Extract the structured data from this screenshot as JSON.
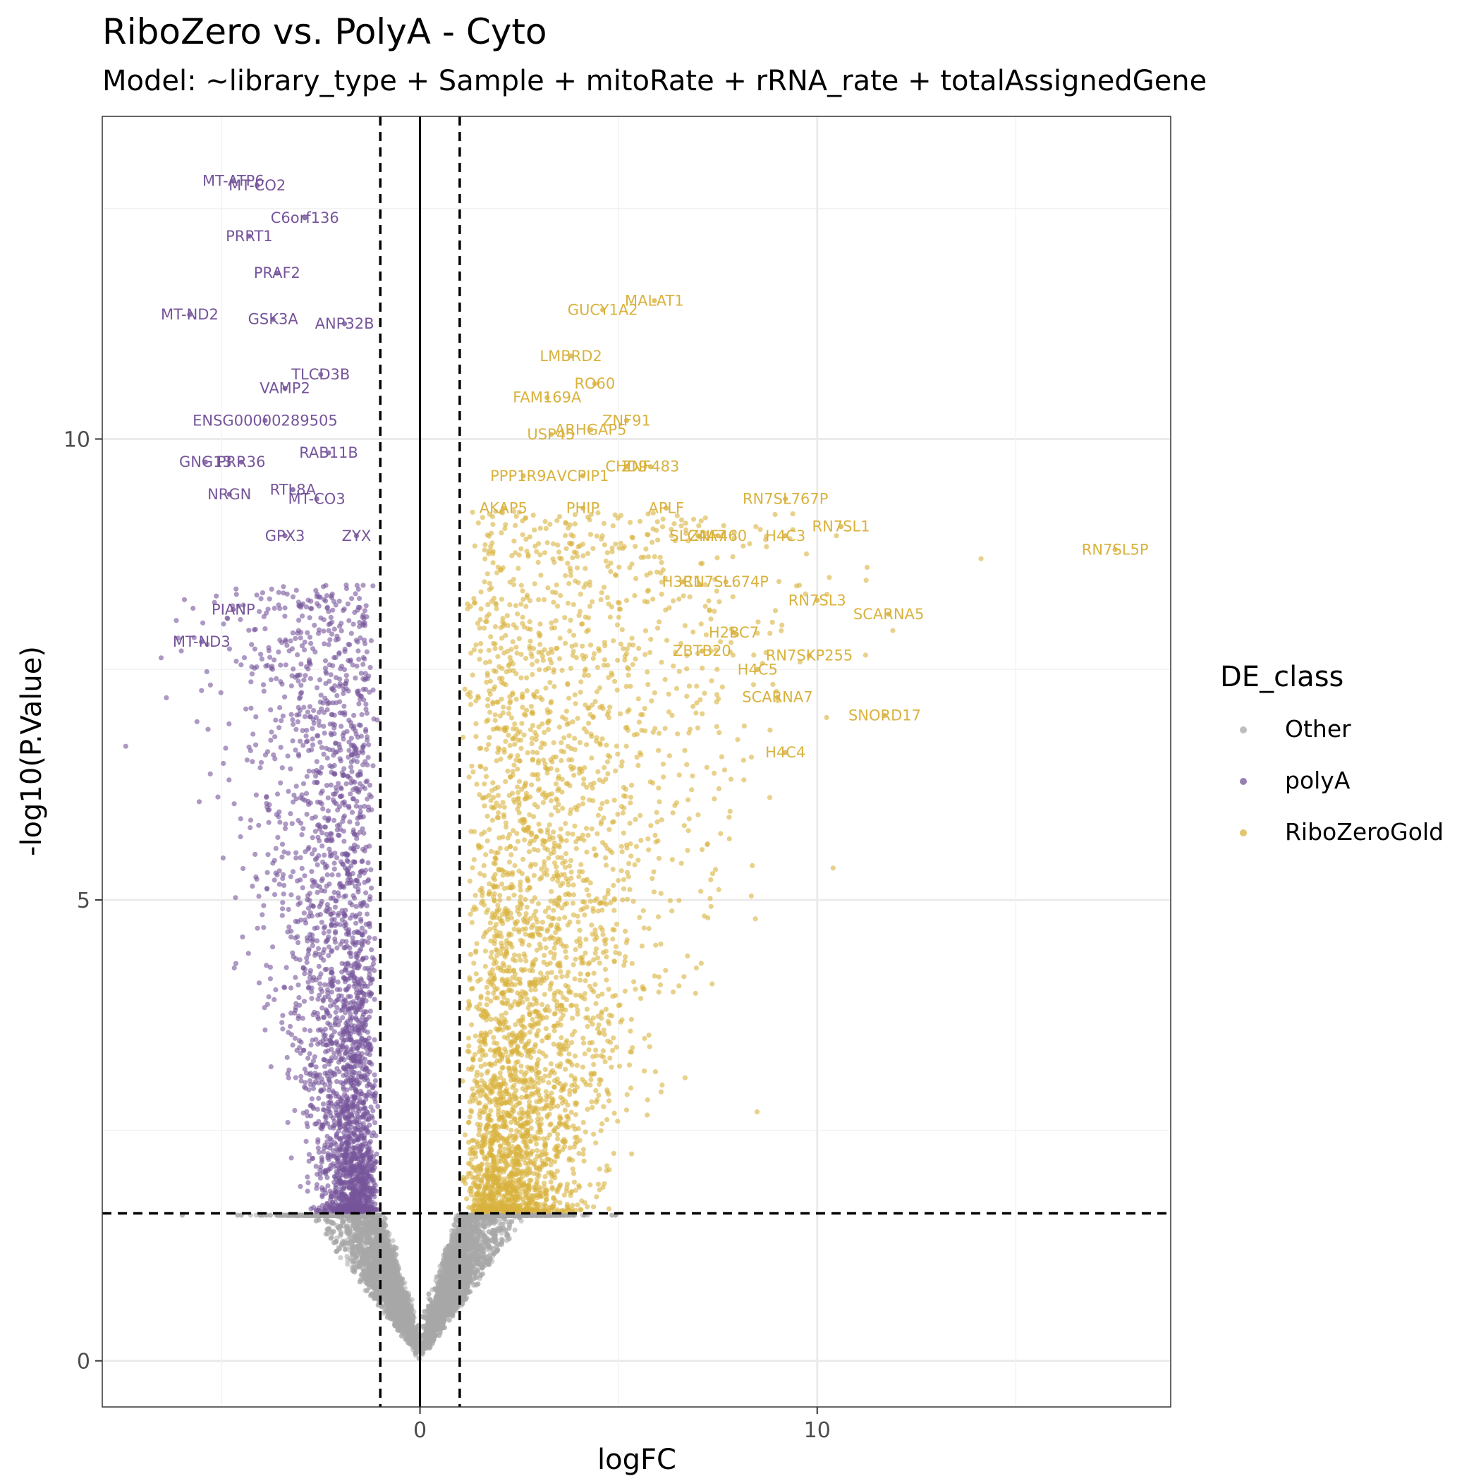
{
  "chart_data": {
    "type": "scatter",
    "title": "RiboZero vs. PolyA - Cyto",
    "subtitle": "Model: ~library_type + Sample + mitoRate + rRNA_rate + totalAssignedGene",
    "xlabel": "logFC",
    "ylabel": "-log10(P.Value)",
    "xlim": [
      -8.0,
      18.9
    ],
    "ylim": [
      -0.5,
      13.5
    ],
    "x_ticks": [
      "0",
      "10"
    ],
    "x_tick_values": [
      0,
      10
    ],
    "y_ticks": [
      "0",
      "5",
      "10"
    ],
    "y_tick_values": [
      0,
      5,
      10
    ],
    "grid": true,
    "thresholds": {
      "logFC": [
        -1,
        1
      ],
      "neg_log10_p": 1.6
    },
    "legend": {
      "title": "DE_class",
      "position": "right",
      "entries": [
        {
          "label": "Other",
          "color": "#a8a8a8"
        },
        {
          "label": "polyA",
          "color": "#76559b"
        },
        {
          "label": "RiboZeroGold",
          "color": "#d9b23e"
        }
      ]
    },
    "labeled_points": [
      {
        "label": "MT-ATP6",
        "x": -4.7,
        "y": 12.8,
        "class": "polyA"
      },
      {
        "label": "MT-CO2",
        "x": -4.1,
        "y": 12.75,
        "class": "polyA"
      },
      {
        "label": "C6orf136",
        "x": -2.9,
        "y": 12.4,
        "class": "polyA"
      },
      {
        "label": "PRRT1",
        "x": -4.3,
        "y": 12.2,
        "class": "polyA"
      },
      {
        "label": "PRAF2",
        "x": -3.6,
        "y": 11.8,
        "class": "polyA"
      },
      {
        "label": "MT-ND2",
        "x": -5.8,
        "y": 11.35,
        "class": "polyA"
      },
      {
        "label": "GSK3A",
        "x": -3.7,
        "y": 11.3,
        "class": "polyA"
      },
      {
        "label": "ANP32B",
        "x": -1.9,
        "y": 11.25,
        "class": "polyA"
      },
      {
        "label": "TLCD3B",
        "x": -2.5,
        "y": 10.7,
        "class": "polyA"
      },
      {
        "label": "VAMP2",
        "x": -3.4,
        "y": 10.55,
        "class": "polyA"
      },
      {
        "label": "ENSG00000289505",
        "x": -3.9,
        "y": 10.2,
        "class": "polyA"
      },
      {
        "label": "RAB11B",
        "x": -2.3,
        "y": 9.85,
        "class": "polyA"
      },
      {
        "label": "GNG13",
        "x": -5.4,
        "y": 9.75,
        "class": "polyA"
      },
      {
        "label": "PRR36",
        "x": -4.5,
        "y": 9.75,
        "class": "polyA"
      },
      {
        "label": "NRGN",
        "x": -4.8,
        "y": 9.4,
        "class": "polyA"
      },
      {
        "label": "RTL8A",
        "x": -3.2,
        "y": 9.45,
        "class": "polyA"
      },
      {
        "label": "MT-CO3",
        "x": -2.6,
        "y": 9.35,
        "class": "polyA"
      },
      {
        "label": "GPX3",
        "x": -3.4,
        "y": 8.95,
        "class": "polyA"
      },
      {
        "label": "ZYX",
        "x": -1.6,
        "y": 8.95,
        "class": "polyA"
      },
      {
        "label": "PIANP",
        "x": -4.7,
        "y": 8.15,
        "class": "polyA"
      },
      {
        "label": "MT-ND3",
        "x": -5.5,
        "y": 7.8,
        "class": "polyA"
      },
      {
        "label": "MALAT1",
        "x": 5.9,
        "y": 11.5,
        "class": "RiboZeroGold"
      },
      {
        "label": "GUCY1A2",
        "x": 4.6,
        "y": 11.4,
        "class": "RiboZeroGold"
      },
      {
        "label": "LMBRD2",
        "x": 3.8,
        "y": 10.9,
        "class": "RiboZeroGold"
      },
      {
        "label": "RO60",
        "x": 4.4,
        "y": 10.6,
        "class": "RiboZeroGold"
      },
      {
        "label": "FAM169A",
        "x": 3.2,
        "y": 10.45,
        "class": "RiboZeroGold"
      },
      {
        "label": "ZNF91",
        "x": 5.2,
        "y": 10.2,
        "class": "RiboZeroGold"
      },
      {
        "label": "ARHGAP5",
        "x": 4.3,
        "y": 10.1,
        "class": "RiboZeroGold"
      },
      {
        "label": "USP45",
        "x": 3.3,
        "y": 10.05,
        "class": "RiboZeroGold"
      },
      {
        "label": "PPP1R9A",
        "x": 2.6,
        "y": 9.6,
        "class": "RiboZeroGold"
      },
      {
        "label": "VCPIP1",
        "x": 4.1,
        "y": 9.6,
        "class": "RiboZeroGold"
      },
      {
        "label": "CHD9",
        "x": 5.2,
        "y": 9.7,
        "class": "RiboZeroGold"
      },
      {
        "label": "ZNF483",
        "x": 5.8,
        "y": 9.7,
        "class": "RiboZeroGold"
      },
      {
        "label": "AKAP5",
        "x": 2.1,
        "y": 9.25,
        "class": "RiboZeroGold"
      },
      {
        "label": "PHIP",
        "x": 4.1,
        "y": 9.25,
        "class": "RiboZeroGold"
      },
      {
        "label": "APLF",
        "x": 6.2,
        "y": 9.25,
        "class": "RiboZeroGold"
      },
      {
        "label": "RN7SL767P",
        "x": 9.2,
        "y": 9.35,
        "class": "RiboZeroGold"
      },
      {
        "label": "SLC4A7",
        "x": 7.0,
        "y": 8.95,
        "class": "RiboZeroGold"
      },
      {
        "label": "ZNF460",
        "x": 7.5,
        "y": 8.95,
        "class": "RiboZeroGold"
      },
      {
        "label": "H4C3",
        "x": 9.2,
        "y": 8.95,
        "class": "RiboZeroGold"
      },
      {
        "label": "RN7SL1",
        "x": 10.6,
        "y": 9.05,
        "class": "RiboZeroGold"
      },
      {
        "label": "RN7SL5P",
        "x": 17.5,
        "y": 8.8,
        "class": "RiboZeroGold"
      },
      {
        "label": "RN7SL674P",
        "x": 7.7,
        "y": 8.45,
        "class": "RiboZeroGold"
      },
      {
        "label": "H3C1",
        "x": 6.6,
        "y": 8.45,
        "class": "RiboZeroGold"
      },
      {
        "label": "RN7SL3",
        "x": 10.0,
        "y": 8.25,
        "class": "RiboZeroGold"
      },
      {
        "label": "SCARNA5",
        "x": 11.8,
        "y": 8.1,
        "class": "RiboZeroGold"
      },
      {
        "label": "H2BC7",
        "x": 7.9,
        "y": 7.9,
        "class": "RiboZeroGold"
      },
      {
        "label": "RN7SKP255",
        "x": 9.8,
        "y": 7.65,
        "class": "RiboZeroGold"
      },
      {
        "label": "ZBTB20",
        "x": 7.1,
        "y": 7.7,
        "class": "RiboZeroGold"
      },
      {
        "label": "H4C5",
        "x": 8.5,
        "y": 7.5,
        "class": "RiboZeroGold"
      },
      {
        "label": "SCARNA7",
        "x": 9.0,
        "y": 7.2,
        "class": "RiboZeroGold"
      },
      {
        "label": "SNORD17",
        "x": 11.7,
        "y": 7.0,
        "class": "RiboZeroGold"
      },
      {
        "label": "H4C4",
        "x": 9.2,
        "y": 6.6,
        "class": "RiboZeroGold"
      }
    ]
  }
}
